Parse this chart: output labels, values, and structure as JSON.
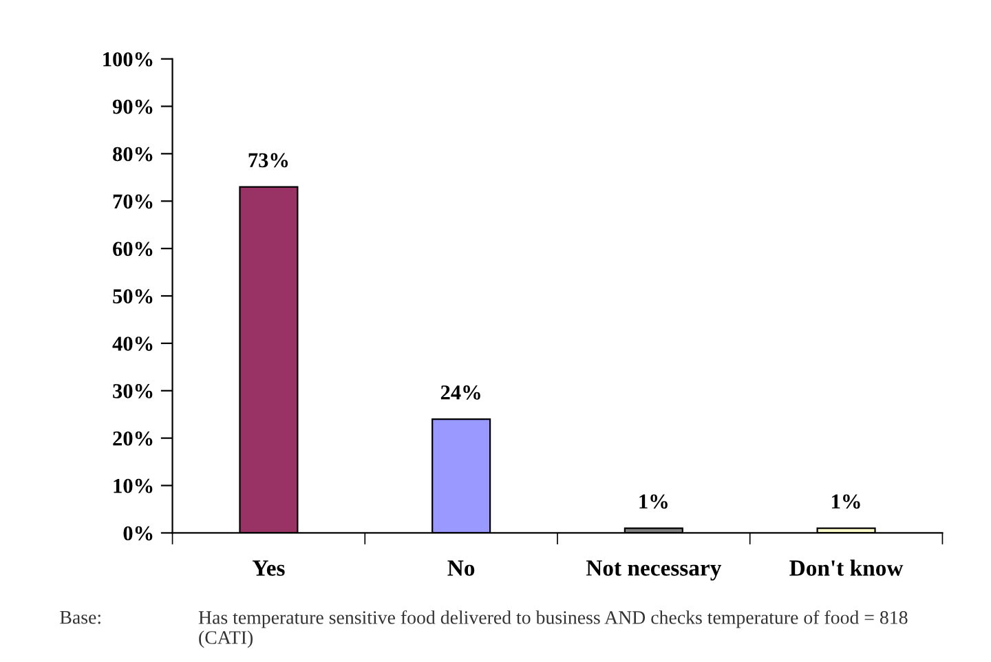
{
  "chart_data": {
    "type": "bar",
    "categories": [
      "Yes",
      "No",
      "Not necessary",
      "Don't know"
    ],
    "values": [
      73,
      24,
      1,
      1
    ],
    "colors": [
      "#993366",
      "#9999ff",
      "#808080",
      "#ffffcc"
    ],
    "value_labels": [
      "73%",
      "24%",
      "1%",
      "1%"
    ],
    "ylim": [
      0,
      100
    ],
    "yticks": [
      {
        "value": 0,
        "label": "0%"
      },
      {
        "value": 10,
        "label": "10%"
      },
      {
        "value": 20,
        "label": "20%"
      },
      {
        "value": 30,
        "label": "30%"
      },
      {
        "value": 40,
        "label": "40%"
      },
      {
        "value": 50,
        "label": "50%"
      },
      {
        "value": 60,
        "label": "60%"
      },
      {
        "value": 70,
        "label": "70%"
      },
      {
        "value": 80,
        "label": "80%"
      },
      {
        "value": 90,
        "label": "90%"
      },
      {
        "value": 100,
        "label": "100%"
      }
    ],
    "grid": false,
    "legend": false,
    "annotations": [
      "Base:",
      "Has temperature sensitive food delivered to business AND checks temperature of food = 818  (CATI)"
    ]
  }
}
